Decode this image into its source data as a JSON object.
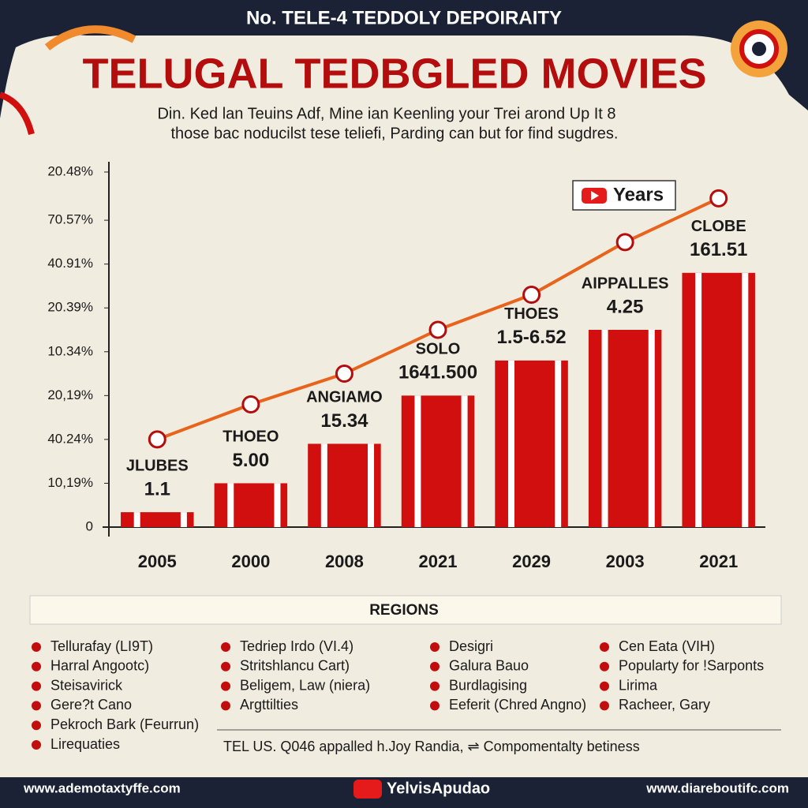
{
  "header": "No. TELE-4 TEDDOLY DEPOIRAITY",
  "chart_data": {
    "type": "bar",
    "title": "TELUGAL TEDBGLED MOVIES",
    "subtitle": [
      "Din. Ked lan Teuins Adf, Mine ian Keenling your Trei arond Up It 8",
      "those bac noducilst tese teliefi, Parding can but for find sugdres."
    ],
    "categories": [
      "2005",
      "2000",
      "2008",
      "2021",
      "2029",
      "2003",
      "2021"
    ],
    "values": [
      0.34,
      1.0,
      1.9,
      3.0,
      3.8,
      4.5,
      5.8
    ],
    "bar_labels": [
      [
        "JLUBES",
        "1.1"
      ],
      [
        "THOEO",
        "5.00"
      ],
      [
        "ANGIAMO",
        "15.34"
      ],
      [
        "SOLO",
        "1641.500"
      ],
      [
        "THOES",
        "1.5-6.52"
      ],
      [
        "AIPPALLES",
        "4.25"
      ],
      [
        "CLOBE",
        "161.51"
      ]
    ],
    "color": "#d10f0f",
    "series": [
      {
        "name": "Years",
        "type": "line",
        "color": "#e8641c",
        "values": [
          2.0,
          2.8,
          3.5,
          4.5,
          5.3,
          6.5,
          7.5
        ]
      }
    ],
    "ylim": [
      0,
      8.1
    ],
    "yticks": [
      0,
      {
        "value": 1,
        "label": "10,19%"
      },
      {
        "value": 2,
        "label": "40.24%"
      },
      {
        "value": 3,
        "label": "20,19%"
      },
      {
        "value": 4,
        "label": "10.34%"
      },
      {
        "value": 5,
        "label": "20.39%"
      },
      {
        "value": 6,
        "label": "40.91%"
      },
      {
        "value": 7,
        "label": "70.57%"
      },
      {
        "value": 8.1,
        "label": "20.48%"
      }
    ]
  },
  "regions": {
    "title": "REGIONS",
    "columns": [
      [
        "Tellurafay (LI9T)",
        "Harral Angootc)",
        "Steisavirick",
        "Gere?t Cano",
        "Pekroch Bark (Feurrun)",
        "Lirequaties"
      ],
      [
        "Tedriep Irdo (VI.4)",
        "Stritshlancu Cart)",
        "Beligem, Law (niera)",
        "Argttilties"
      ],
      [
        "Desigri",
        "Galura Bauo",
        "Burdlagising",
        "Eeferit (Chred Angno)"
      ],
      [
        "Cen Eata (VIH)",
        "Popularty for !Sarponts",
        "Lirima",
        "Racheer, Gary"
      ]
    ],
    "note": "TEL US. Q046 appalled h.Joy Randia, ⇌ Compomentalty betiness"
  },
  "footer": {
    "left": "www.ademotaxtyffe.com",
    "center": "YelvisApudao",
    "right": "www.diareboutifc.com"
  }
}
